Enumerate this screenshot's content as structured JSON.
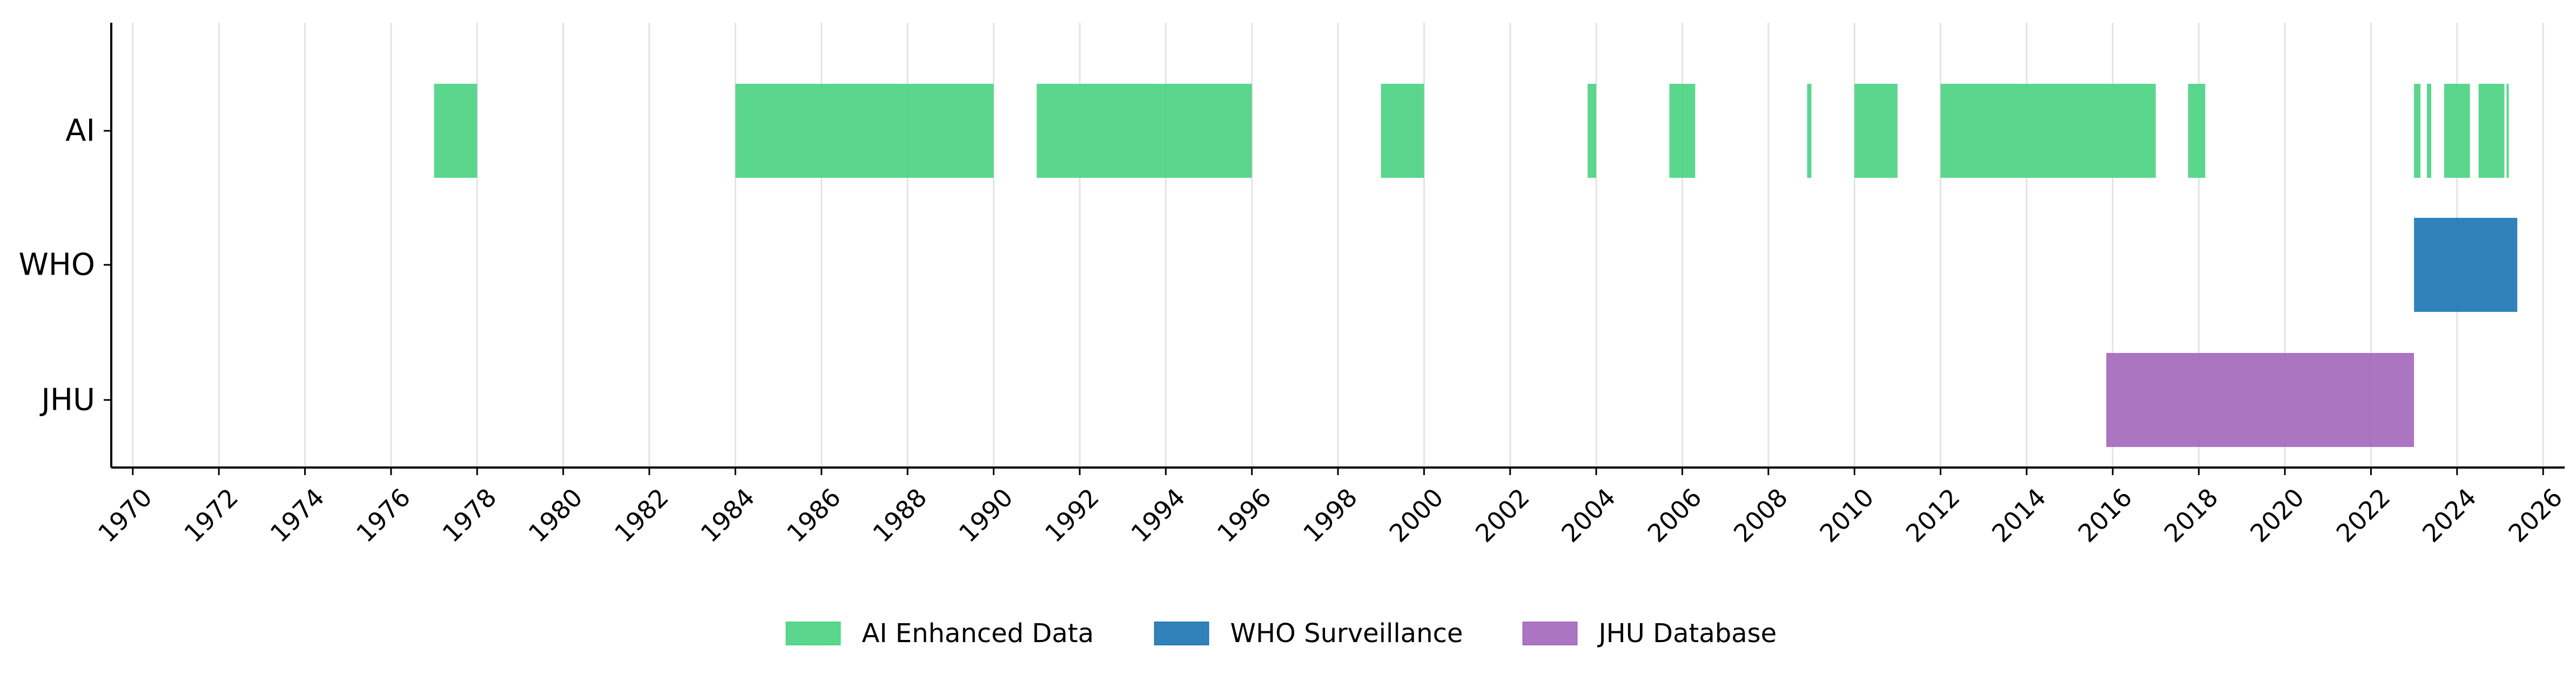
{
  "chart_data": {
    "type": "timeline",
    "title": "",
    "xlabel": "",
    "ylabel": "",
    "xlim": [
      1969.5,
      2026.5
    ],
    "x_ticks": [
      1970,
      1972,
      1974,
      1976,
      1978,
      1980,
      1982,
      1984,
      1986,
      1988,
      1990,
      1992,
      1994,
      1996,
      1998,
      2000,
      2002,
      2004,
      2006,
      2008,
      2010,
      2012,
      2014,
      2016,
      2018,
      2020,
      2022,
      2024,
      2026
    ],
    "x_tick_labels": [
      "1970",
      "1972",
      "1974",
      "1976",
      "1978",
      "1980",
      "1982",
      "1984",
      "1986",
      "1988",
      "1990",
      "1992",
      "1994",
      "1996",
      "1998",
      "2000",
      "2002",
      "2004",
      "2006",
      "2008",
      "2010",
      "2012",
      "2014",
      "2016",
      "2018",
      "2020",
      "2022",
      "2024",
      "2026"
    ],
    "categories": [
      "AI",
      "WHO",
      "JHU"
    ],
    "grid": "vertical",
    "legend_position": "bottom-center",
    "series": [
      {
        "name": "AI Enhanced Data",
        "category": "AI",
        "color": "#4cd483",
        "intervals": [
          [
            1977.0,
            1978.0
          ],
          [
            1984.0,
            1990.0
          ],
          [
            1991.0,
            1996.0
          ],
          [
            1999.0,
            2000.0
          ],
          [
            2003.8,
            2004.0
          ],
          [
            2005.7,
            2006.3
          ],
          [
            2008.9,
            2009.0
          ],
          [
            2010.0,
            2011.0
          ],
          [
            2012.0,
            2017.0
          ],
          [
            2017.75,
            2018.15
          ],
          [
            2023.0,
            2023.15
          ],
          [
            2023.3,
            2023.4
          ],
          [
            2023.7,
            2024.3
          ],
          [
            2024.5,
            2025.1
          ],
          [
            2025.15,
            2025.2
          ]
        ]
      },
      {
        "name": "WHO Surveillance",
        "category": "WHO",
        "color": "#1f77b4",
        "intervals": [
          [
            2023.0,
            2025.4
          ]
        ]
      },
      {
        "name": "JHU Database",
        "category": "JHU",
        "color": "#a569bd",
        "intervals": [
          [
            2015.85,
            2023.0
          ]
        ]
      }
    ]
  }
}
